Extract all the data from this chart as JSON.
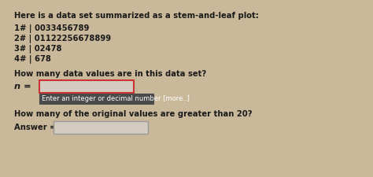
{
  "bg_color": "#c9b99a",
  "title_line": "Here is a data set summarized as a stem-and-leaf plot:",
  "stem_lines": [
    "1# | 0033456789",
    "2# | 01122256678899",
    "3# | 02478",
    "4# | 678"
  ],
  "question1": "How many data values are in this data set?",
  "n_label": "n =",
  "hint_box_text": "Enter an integer or decimal number [more..]",
  "question2": "How many of the original values are greater than 20?",
  "answer_label": "Answer =",
  "text_color": "#1a1a1a",
  "box_border_color_n": "#cc3333",
  "box_border_color_ans": "#999999",
  "box_fill": "#d4ccc0",
  "hint_fill": "#4a4a4a",
  "hint_text_color": "#ffffff",
  "font_size_main": 7.2,
  "font_size_hint": 6.0
}
